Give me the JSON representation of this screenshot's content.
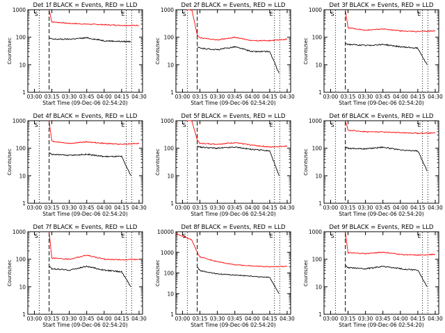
{
  "chart_data": [
    {
      "type": "line",
      "title": "Det 1f BLACK = Events, RED = LLD",
      "xlabel": "Start Time (09-Dec-06 02:54:20)",
      "ylabel": "Counts/sec",
      "ytick_labels": [
        "1",
        "10",
        "100",
        "1000"
      ],
      "ylim": [
        1,
        1000
      ],
      "y_scale": "log",
      "xtick_labels": [
        "03:00",
        "03:15",
        "03:30",
        "03:45",
        "04:00",
        "04:15",
        "04:30"
      ],
      "xlim": [
        "02:54:20",
        "04:33:00"
      ],
      "markers": [
        "S",
        "E"
      ],
      "vlines": [
        "03:04:10",
        "03:12:40",
        "04:19:00",
        "04:23:40"
      ],
      "series": [
        {
          "name": "RED = LLD",
          "color": "#ff0000",
          "x": [
            "03:12:40",
            "03:15",
            "03:30",
            "03:45",
            "04:00",
            "04:15",
            "04:30"
          ],
          "values": [
            1000,
            360,
            320,
            300,
            285,
            270,
            270
          ]
        },
        {
          "name": "BLACK = Events",
          "color": "#000000",
          "x": [
            "03:12:40",
            "03:15",
            "03:30",
            "03:45",
            "04:00",
            "04:15",
            "04:23:00"
          ],
          "values": [
            95,
            85,
            85,
            95,
            75,
            70,
            70
          ]
        }
      ]
    },
    {
      "type": "line",
      "title": "Det 2f BLACK = Events, RED = LLD",
      "xlabel": "Start Time (09-Dec-06 02:54:20)",
      "ylabel": "Counts/sec",
      "ytick_labels": [
        "1",
        "10",
        "100",
        "1000"
      ],
      "ylim": [
        1,
        1000
      ],
      "y_scale": "log",
      "xtick_labels": [
        "03:00",
        "03:15",
        "03:30",
        "03:45",
        "04:00",
        "04:15",
        "04:30"
      ],
      "xlim": [
        "02:54:20",
        "04:33:00"
      ],
      "markers": [
        "S",
        "E"
      ],
      "vlines": [
        "03:04:10",
        "03:12:40",
        "04:19:00",
        "04:23:40"
      ],
      "series": [
        {
          "name": "RED = LLD",
          "color": "#ff0000",
          "x": [
            "03:04:10",
            "03:08",
            "03:12:40",
            "03:15",
            "03:30",
            "03:45",
            "04:00",
            "04:15",
            "04:30"
          ],
          "values": [
            1000,
            1000,
            120,
            95,
            80,
            100,
            75,
            75,
            85
          ]
        },
        {
          "name": "BLACK = Events",
          "color": "#000000",
          "x": [
            "03:12:40",
            "03:15",
            "03:30",
            "03:45",
            "04:00",
            "04:15",
            "04:23:00"
          ],
          "values": [
            45,
            40,
            35,
            45,
            30,
            30,
            5
          ]
        }
      ]
    },
    {
      "type": "line",
      "title": "Det 3f BLACK = Events, RED = LLD",
      "xlabel": "Start Time (09-Dec-06 02:54:20)",
      "ylabel": "Counts/sec",
      "ytick_labels": [
        "1",
        "10",
        "100",
        "1000"
      ],
      "ylim": [
        1,
        1000
      ],
      "y_scale": "log",
      "xtick_labels": [
        "03:00",
        "03:15",
        "03:30",
        "03:45",
        "04:00",
        "04:15",
        "04:30"
      ],
      "xlim": [
        "02:54:20",
        "04:33:00"
      ],
      "markers": [
        "S",
        "E"
      ],
      "vlines": [
        "03:04:10",
        "03:12:40",
        "04:19:00",
        "04:23:40"
      ],
      "series": [
        {
          "name": "RED = LLD",
          "color": "#ff0000",
          "x": [
            "03:12:40",
            "03:15",
            "03:30",
            "03:45",
            "04:00",
            "04:15",
            "04:30"
          ],
          "values": [
            1000,
            220,
            180,
            200,
            170,
            160,
            170
          ]
        },
        {
          "name": "BLACK = Events",
          "color": "#000000",
          "x": [
            "03:12:40",
            "03:15",
            "03:30",
            "03:45",
            "04:00",
            "04:15",
            "04:23:00"
          ],
          "values": [
            60,
            55,
            50,
            55,
            45,
            40,
            10
          ]
        }
      ]
    },
    {
      "type": "line",
      "title": "Det 4f BLACK = Events, RED = LLD",
      "xlabel": "Start Time (09-Dec-06 02:54:20)",
      "ylabel": "Counts/sec",
      "ytick_labels": [
        "1",
        "10",
        "100",
        "1000"
      ],
      "ylim": [
        1,
        1000
      ],
      "y_scale": "log",
      "xtick_labels": [
        "03:00",
        "03:15",
        "03:30",
        "03:45",
        "04:00",
        "04:15",
        "04:30"
      ],
      "xlim": [
        "02:54:20",
        "04:33:00"
      ],
      "markers": [
        "S",
        "E"
      ],
      "vlines": [
        "03:04:10",
        "03:12:40",
        "04:19:00",
        "04:23:40"
      ],
      "series": [
        {
          "name": "RED = LLD",
          "color": "#ff0000",
          "x": [
            "03:12:40",
            "03:15",
            "03:30",
            "03:45",
            "04:00",
            "04:15",
            "04:30"
          ],
          "values": [
            1000,
            180,
            150,
            170,
            150,
            140,
            150
          ]
        },
        {
          "name": "BLACK = Events",
          "color": "#000000",
          "x": [
            "03:12:40",
            "03:15",
            "03:30",
            "03:45",
            "04:00",
            "04:15",
            "04:23:00"
          ],
          "values": [
            70,
            60,
            55,
            60,
            50,
            50,
            10
          ]
        }
      ]
    },
    {
      "type": "line",
      "title": "Det 5f BLACK = Events, RED = LLD",
      "xlabel": "Start Time (09-Dec-06 02:54:20)",
      "ylabel": "Counts/sec",
      "ytick_labels": [
        "1",
        "10",
        "100",
        "1000"
      ],
      "ylim": [
        1,
        1000
      ],
      "y_scale": "log",
      "xtick_labels": [
        "03:00",
        "03:15",
        "03:30",
        "03:45",
        "04:00",
        "04:15",
        "04:30"
      ],
      "xlim": [
        "02:54:20",
        "04:33:00"
      ],
      "markers": [
        "S",
        "E"
      ],
      "vlines": [
        "03:04:10",
        "03:12:40",
        "04:19:00",
        "04:23:40"
      ],
      "series": [
        {
          "name": "RED = LLD",
          "color": "#ff0000",
          "x": [
            "03:04:10",
            "03:08",
            "03:12:40",
            "03:15",
            "03:30",
            "03:45",
            "04:00",
            "04:15",
            "04:30"
          ],
          "values": [
            1000,
            1000,
            200,
            150,
            140,
            160,
            130,
            110,
            120
          ]
        },
        {
          "name": "BLACK = Events",
          "color": "#000000",
          "x": [
            "03:12:40",
            "03:15",
            "03:30",
            "03:45",
            "04:00",
            "04:15",
            "04:23:00"
          ],
          "values": [
            120,
            110,
            100,
            110,
            90,
            80,
            10
          ]
        }
      ]
    },
    {
      "type": "line",
      "title": "Det 6f BLACK = Events, RED = LLD",
      "xlabel": "Start Time (09-Dec-06 02:54:20)",
      "ylabel": "Counts/sec",
      "ytick_labels": [
        "1",
        "10",
        "100",
        "1000"
      ],
      "ylim": [
        1,
        1000
      ],
      "y_scale": "log",
      "xtick_labels": [
        "03:00",
        "03:15",
        "03:30",
        "03:45",
        "04:00",
        "04:15",
        "04:30"
      ],
      "xlim": [
        "02:54:20",
        "04:33:00"
      ],
      "markers": [
        "S",
        "E"
      ],
      "vlines": [
        "03:04:10",
        "03:12:40",
        "04:19:00",
        "04:23:40"
      ],
      "series": [
        {
          "name": "RED = LLD",
          "color": "#ff0000",
          "x": [
            "03:12:40",
            "03:15",
            "03:30",
            "03:45",
            "04:00",
            "04:15",
            "04:30"
          ],
          "values": [
            1000,
            450,
            400,
            390,
            370,
            350,
            360
          ]
        },
        {
          "name": "BLACK = Events",
          "color": "#000000",
          "x": [
            "03:12:40",
            "03:15",
            "03:30",
            "03:45",
            "04:00",
            "04:15",
            "04:23:00"
          ],
          "values": [
            110,
            100,
            95,
            110,
            85,
            80,
            15
          ]
        }
      ]
    },
    {
      "type": "line",
      "title": "Det 7f BLACK = Events, RED = LLD",
      "xlabel": "Start Time (09-Dec-06 02:54:20)",
      "ylabel": "Counts/sec",
      "ytick_labels": [
        "1",
        "10",
        "100",
        "1000"
      ],
      "ylim": [
        1,
        1000
      ],
      "y_scale": "log",
      "xtick_labels": [
        "03:00",
        "03:15",
        "03:30",
        "03:45",
        "04:00",
        "04:15",
        "04:30"
      ],
      "xlim": [
        "02:54:20",
        "04:33:00"
      ],
      "markers": [
        "S",
        "E"
      ],
      "vlines": [
        "03:04:10",
        "03:12:40",
        "04:19:00",
        "04:23:40"
      ],
      "series": [
        {
          "name": "RED = LLD",
          "color": "#ff0000",
          "x": [
            "03:12:40",
            "03:15",
            "03:30",
            "03:45",
            "04:00",
            "04:15",
            "04:30"
          ],
          "values": [
            1000,
            110,
            100,
            140,
            100,
            95,
            100
          ]
        },
        {
          "name": "BLACK = Events",
          "color": "#000000",
          "x": [
            "03:12:40",
            "03:15",
            "03:30",
            "03:45",
            "04:00",
            "04:15",
            "04:23:00"
          ],
          "values": [
            55,
            45,
            40,
            55,
            40,
            35,
            10
          ]
        }
      ]
    },
    {
      "type": "line",
      "title": "Det 8f BLACK = Events, RED = LLD",
      "xlabel": "Start Time (09-Dec-06 02:54:20)",
      "ylabel": "Counts/sec",
      "ytick_labels": [
        "1",
        "10",
        "100",
        "1000",
        "10000"
      ],
      "ylim": [
        1,
        10000
      ],
      "y_scale": "log",
      "xtick_labels": [
        "03:00",
        "03:15",
        "03:30",
        "03:45",
        "04:00",
        "04:15",
        "04:30"
      ],
      "xlim": [
        "02:54:20",
        "04:33:00"
      ],
      "markers": [
        "S",
        "E"
      ],
      "vlines": [
        "03:04:10",
        "03:12:40",
        "04:19:00",
        "04:23:40"
      ],
      "series": [
        {
          "name": "RED = LLD",
          "color": "#ff0000",
          "x": [
            "02:54:20",
            "03:04:10",
            "03:08",
            "03:12:40",
            "03:15",
            "03:30",
            "03:45",
            "04:00",
            "04:15",
            "04:30"
          ],
          "values": [
            8000,
            5000,
            4000,
            1000,
            600,
            350,
            250,
            220,
            200,
            210
          ]
        },
        {
          "name": "BLACK = Events",
          "color": "#000000",
          "x": [
            "03:12:40",
            "03:15",
            "03:30",
            "03:45",
            "04:00",
            "04:15",
            "04:23:00"
          ],
          "values": [
            200,
            130,
            90,
            80,
            70,
            60,
            10
          ]
        }
      ]
    },
    {
      "type": "line",
      "title": "Det 9f BLACK = Events, RED = LLD",
      "xlabel": "Start Time (09-Dec-06 02:54:20)",
      "ylabel": "Counts/sec",
      "ytick_labels": [
        "1",
        "10",
        "100",
        "1000"
      ],
      "ylim": [
        1,
        1000
      ],
      "y_scale": "log",
      "xtick_labels": [
        "03:00",
        "03:15",
        "03:30",
        "03:45",
        "04:00",
        "04:15",
        "04:30"
      ],
      "xlim": [
        "02:54:20",
        "04:33:00"
      ],
      "markers": [
        "S",
        "E"
      ],
      "vlines": [
        "03:04:10",
        "03:12:40",
        "04:19:00",
        "04:23:40"
      ],
      "series": [
        {
          "name": "RED = LLD",
          "color": "#ff0000",
          "x": [
            "03:12:40",
            "03:15",
            "03:30",
            "03:45",
            "04:00",
            "04:15",
            "04:30"
          ],
          "values": [
            1000,
            170,
            160,
            180,
            150,
            140,
            150
          ]
        },
        {
          "name": "BLACK = Events",
          "color": "#000000",
          "x": [
            "03:12:40",
            "03:15",
            "03:30",
            "03:45",
            "04:00",
            "04:15",
            "04:23:00"
          ],
          "values": [
            60,
            50,
            45,
            55,
            45,
            40,
            10
          ]
        }
      ]
    }
  ]
}
